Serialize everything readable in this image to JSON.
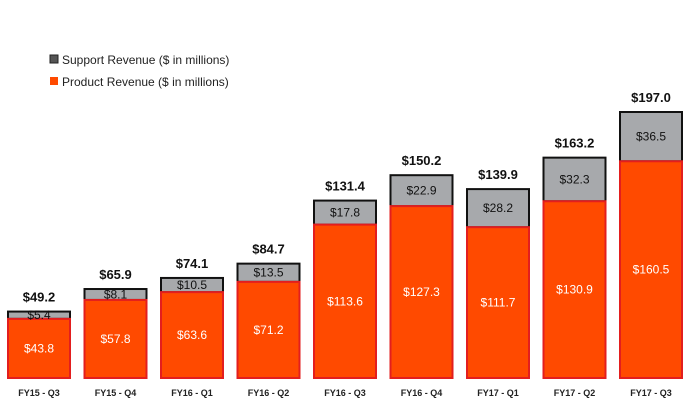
{
  "chart_data": {
    "type": "bar",
    "stacked": true,
    "categories": [
      "FY15 - Q3",
      "FY15 - Q4",
      "FY16 - Q1",
      "FY16 - Q2",
      "FY16 - Q3",
      "FY16 - Q4",
      "FY17 - Q1",
      "FY17 - Q2",
      "FY17 - Q3"
    ],
    "series": [
      {
        "name": "Product Revenue ($ in millions)",
        "color": "#ff4a00",
        "values": [
          43.8,
          57.8,
          63.6,
          71.2,
          113.6,
          127.3,
          111.7,
          130.9,
          160.5
        ],
        "labels": [
          "$43.8",
          "$57.8",
          "$63.6",
          "$71.2",
          "$113.6",
          "$127.3",
          "$111.7",
          "$130.9",
          "$160.5"
        ]
      },
      {
        "name": "Support Revenue ($ in millions)",
        "color": "#a7a9ac",
        "values": [
          5.4,
          8.1,
          10.5,
          13.5,
          17.8,
          22.9,
          28.2,
          32.3,
          36.5
        ],
        "labels": [
          "$5.4",
          "$8.1",
          "$10.5",
          "$13.5",
          "$17.8",
          "$22.9",
          "$28.2",
          "$32.3",
          "$36.5"
        ]
      }
    ],
    "totals": [
      49.2,
      65.9,
      74.1,
      84.7,
      131.4,
      150.2,
      139.9,
      163.2,
      197.0
    ],
    "total_labels": [
      "$49.2",
      "$65.9",
      "$74.1",
      "$84.7",
      "$131.4",
      "$150.2",
      "$139.9",
      "$163.2",
      "$197.0"
    ],
    "legend": [
      "Support Revenue ($ in millions)",
      "Product Revenue ($ in millions)"
    ],
    "legend_position": "top-left",
    "ylim": [
      0,
      197
    ],
    "grid": false
  }
}
